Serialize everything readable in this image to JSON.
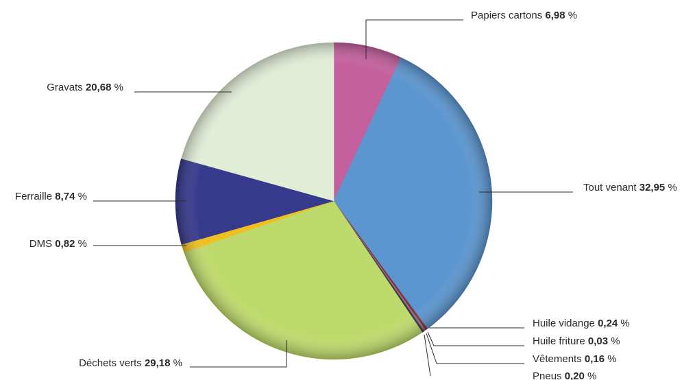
{
  "chart_data": {
    "type": "pie",
    "title": "",
    "slices": [
      {
        "name": "Papiers cartons",
        "value": 6.98,
        "display": "6,98",
        "color": "#c4609e"
      },
      {
        "name": "Tout venant",
        "value": 32.95,
        "display": "32,95",
        "color": "#5c96d0"
      },
      {
        "name": "Huile vidange",
        "value": 0.24,
        "display": "0,24",
        "color": "#8a2a3a"
      },
      {
        "name": "Huile friture",
        "value": 0.03,
        "display": "0,03",
        "color": "#c9b22a"
      },
      {
        "name": "Vêtements",
        "value": 0.16,
        "display": "0,16",
        "color": "#7a6ab0"
      },
      {
        "name": "Pneus",
        "value": 0.2,
        "display": "0,20",
        "color": "#3a3a3a"
      },
      {
        "name": "Déchets verts",
        "value": 29.18,
        "display": "29,18",
        "color": "#bfda6c"
      },
      {
        "name": "DMS",
        "value": 0.82,
        "display": "0,82",
        "color": "#f0c020"
      },
      {
        "name": "Ferraille",
        "value": 8.74,
        "display": "8,74",
        "color": "#363a8c"
      },
      {
        "name": "Gravats",
        "value": 20.68,
        "display": "20,68",
        "color": "#e2edd6"
      }
    ],
    "unit": "%",
    "legend": "callout labels with leader lines"
  }
}
